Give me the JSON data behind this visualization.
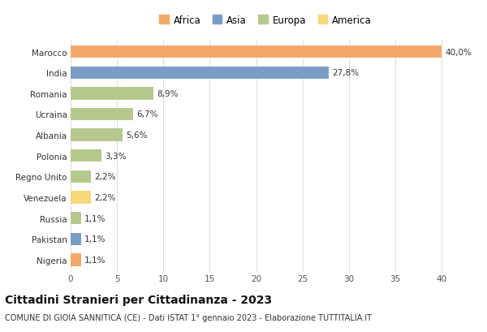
{
  "countries": [
    "Marocco",
    "India",
    "Romania",
    "Ucraina",
    "Albania",
    "Polonia",
    "Regno Unito",
    "Venezuela",
    "Russia",
    "Pakistan",
    "Nigeria"
  ],
  "values": [
    40.0,
    27.8,
    8.9,
    6.7,
    5.6,
    3.3,
    2.2,
    2.2,
    1.1,
    1.1,
    1.1
  ],
  "labels": [
    "40,0%",
    "27,8%",
    "8,9%",
    "6,7%",
    "5,6%",
    "3,3%",
    "2,2%",
    "2,2%",
    "1,1%",
    "1,1%",
    "1,1%"
  ],
  "continents": [
    "Africa",
    "Asia",
    "Europa",
    "Europa",
    "Europa",
    "Europa",
    "Europa",
    "America",
    "Europa",
    "Asia",
    "Africa"
  ],
  "colors": {
    "Africa": "#F4A96A",
    "Asia": "#7A9DC5",
    "Europa": "#B5C98E",
    "America": "#F5D97A"
  },
  "legend_order": [
    "Africa",
    "Asia",
    "Europa",
    "America"
  ],
  "xlim": [
    0,
    42
  ],
  "xticks": [
    0,
    5,
    10,
    15,
    20,
    25,
    30,
    35,
    40
  ],
  "title": "Cittadini Stranieri per Cittadinanza - 2023",
  "subtitle": "COMUNE DI GIOIA SANNITICA (CE) - Dati ISTAT 1° gennaio 2023 - Elaborazione TUTTITALIA.IT",
  "background_color": "#ffffff",
  "grid_color": "#dddddd",
  "bar_height": 0.6,
  "title_fontsize": 10,
  "subtitle_fontsize": 7,
  "label_fontsize": 7.5,
  "legend_fontsize": 8.5,
  "tick_fontsize": 7.5
}
